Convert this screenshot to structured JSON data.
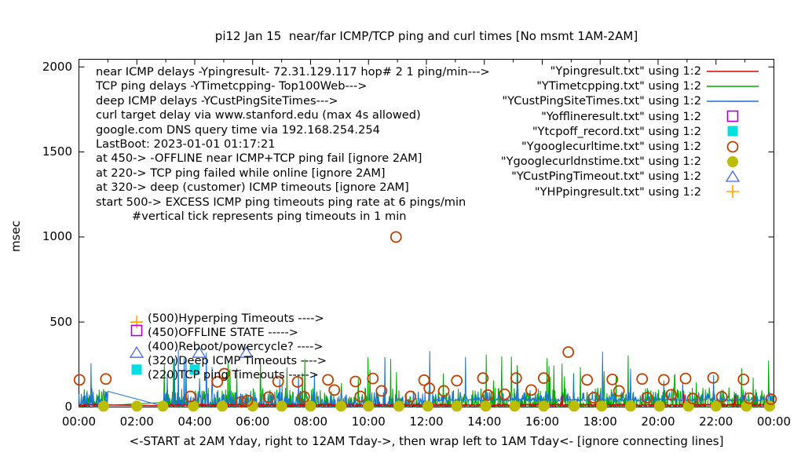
{
  "chart_data": {
    "type": "line",
    "title": "pi12 Jan 15  near/far ICMP/TCP ping and curl times [No msmt 1AM-2AM]",
    "ylabel": "msec",
    "xlabel": "<-START at 2AM Yday, right to 12AM Tday->, then wrap left to 1AM Tday<- [ignore connecting lines]",
    "ylim": [
      0,
      2050
    ],
    "yticks": [
      0,
      500,
      1000,
      1500,
      2000
    ],
    "xticks": [
      "00:00",
      "02:00",
      "04:00",
      "06:00",
      "08:00",
      "10:00",
      "12:00",
      "14:00",
      "16:00",
      "18:00",
      "20:00",
      "22:00",
      "00:00"
    ],
    "x_hours_range": [
      0,
      24
    ],
    "grid": false,
    "legend_position": "top-right-inside",
    "no_measurement_gap_hours": [
      1.0,
      2.9
    ],
    "series": [
      {
        "name": "\"Ypingresult.txt\" using 1:2",
        "file": "Ypingresult.txt",
        "style": "line",
        "color": "#e00000",
        "role": "near ICMP ping delay, ~8-16 msec baseline with rare spikes to 90",
        "noise": {
          "kind": "uniform",
          "base": 7,
          "range": 9,
          "spike_p": 0.004,
          "spike_min": 40,
          "spike_max": 90
        },
        "seed": 101
      },
      {
        "name": "\"YTimetcpping.txt\" using 1:2",
        "file": "YTimetcpping.txt",
        "style": "line",
        "color": "#00a800",
        "role": "TCP ping delay Top100Web, 0-120 msec noise, spikes to ~300",
        "noise": {
          "kind": "power",
          "pow": 3,
          "base": 115,
          "spike_p": 0.025,
          "spike_min": 140,
          "spike_max": 310
        },
        "seed": 202
      },
      {
        "name": "\"YCustPingSiteTimes.txt\" using 1:2",
        "file": "YCustPingSiteTimes.txt",
        "style": "line",
        "color": "#1874d2",
        "role": "deep customer ICMP delay, 0-100 msec noise, ~40 msec floor after 12:00, spikes to ~350",
        "noise": {
          "kind": "power",
          "pow": 3,
          "base": 95,
          "floor_after_hour": 12.2,
          "floor_min": 34,
          "floor_range": 12,
          "spike_p": 0.016,
          "spike_min": 120,
          "spike_max": 350
        },
        "seed": 303
      },
      {
        "name": "\"Yofflineresult.txt\" using 1:2",
        "file": "Yofflineresult.txt",
        "style": "open-square",
        "color": "#b000d8",
        "role": "offline state events at 450",
        "points": []
      },
      {
        "name": "\"Ytcpoff_record.txt\" using 1:2",
        "file": "Ytcpoff_record.txt",
        "style": "filled-square",
        "color": "#00e0e0",
        "role": "TCP ping failed while online at 220",
        "points": [
          [
            4.0,
            220
          ]
        ]
      },
      {
        "name": "\"Ygooglecurltime.txt\" using 1:2",
        "file": "Ygooglecurltime.txt",
        "style": "open-circle",
        "color": "#bf4000",
        "role": "curl target delay via www.stanford.edu",
        "points": [
          [
            0.02,
            160
          ],
          [
            0.93,
            165
          ],
          [
            3.85,
            62
          ],
          [
            4.78,
            148
          ],
          [
            5.02,
            196
          ],
          [
            5.6,
            30
          ],
          [
            5.82,
            38
          ],
          [
            6.55,
            58
          ],
          [
            6.88,
            150
          ],
          [
            7.55,
            148
          ],
          [
            7.78,
            60
          ],
          [
            8.6,
            160
          ],
          [
            8.82,
            100
          ],
          [
            9.55,
            150
          ],
          [
            9.72,
            62
          ],
          [
            10.15,
            168
          ],
          [
            10.45,
            95
          ],
          [
            10.95,
            1000
          ],
          [
            11.45,
            62
          ],
          [
            11.92,
            158
          ],
          [
            12.1,
            110
          ],
          [
            12.6,
            95
          ],
          [
            13.05,
            155
          ],
          [
            13.95,
            170
          ],
          [
            14.12,
            70
          ],
          [
            14.7,
            75
          ],
          [
            15.1,
            170
          ],
          [
            15.62,
            100
          ],
          [
            16.05,
            170
          ],
          [
            16.9,
            323
          ],
          [
            17.55,
            160
          ],
          [
            17.78,
            55
          ],
          [
            18.42,
            162
          ],
          [
            18.65,
            95
          ],
          [
            19.45,
            165
          ],
          [
            19.62,
            55
          ],
          [
            20.2,
            160
          ],
          [
            20.45,
            72
          ],
          [
            20.95,
            168
          ],
          [
            21.2,
            50
          ],
          [
            21.9,
            172
          ],
          [
            22.2,
            60
          ],
          [
            22.95,
            162
          ],
          [
            23.15,
            52
          ],
          [
            23.9,
            46
          ]
        ]
      },
      {
        "name": "\"Ygooglecurldnstime.txt\" using 1:2",
        "file": "Ygooglecurldnstime.txt",
        "style": "filled-circle",
        "color": "#bcbc00",
        "role": "google.com DNS query time via 192.168.254.254, ~5-10 msec hourly",
        "points": [
          [
            0.85,
            5
          ],
          [
            2.0,
            5
          ],
          [
            2.9,
            5
          ],
          [
            3.95,
            5
          ],
          [
            4.95,
            5
          ],
          [
            6.0,
            5
          ],
          [
            7.0,
            5
          ],
          [
            8.0,
            5
          ],
          [
            9.05,
            5
          ],
          [
            10.0,
            5
          ],
          [
            11.05,
            5
          ],
          [
            12.05,
            5
          ],
          [
            13.05,
            5
          ],
          [
            14.05,
            5
          ],
          [
            15.05,
            5
          ],
          [
            16.05,
            5
          ],
          [
            17.1,
            5
          ],
          [
            18.05,
            5
          ],
          [
            19.05,
            5
          ],
          [
            20.05,
            5
          ],
          [
            21.05,
            5
          ],
          [
            22.0,
            5
          ],
          [
            23.05,
            5
          ],
          [
            23.85,
            5
          ]
        ]
      },
      {
        "name": "\"YCustPingTimeout.txt\" using 1:2",
        "file": "YCustPingTimeout.txt",
        "style": "open-triangle",
        "color": "#4169e1",
        "role": "deep (customer) ICMP timeouts at 320",
        "points": [
          [
            4.15,
            320
          ],
          [
            5.78,
            320
          ]
        ]
      },
      {
        "name": "\"YHPpingresult.txt\" using 1:2",
        "file": "YHPpingresult.txt",
        "style": "plus",
        "color": "#ffa500",
        "role": "Hyperping excess ICMP timeouts at 500",
        "points": []
      }
    ]
  },
  "annotations": {
    "lines": [
      "near ICMP delays -Ypingresult- 72.31.129.117 hop# 2 1 ping/min--->",
      "TCP ping delays -YTimetcpping- Top100Web--->",
      "deep ICMP delays -YCustPingSiteTimes--->",
      "curl target delay via www.stanford.edu (max 4s allowed)",
      "google.com DNS query time via 192.168.254.254",
      "LastBoot: 2023-01-01 01:17:21",
      "at 450-> -OFFLINE near ICMP+TCP ping fail [ignore 2AM]",
      "at 220-> TCP ping failed while online [ignore 2AM]",
      "at 320-> deep (customer) ICMP timeouts [ignore 2AM]",
      "start 500-> EXCESS ICMP ping timeouts ping rate at 6 pings/min",
      "#vertical tick represents ping timeouts in 1 min"
    ]
  },
  "inplot_labels": [
    {
      "text": "(500)Hyperping Timeouts ---->",
      "msec": 500,
      "marker": "plus",
      "color": "#ffa500"
    },
    {
      "text": "(450)OFFLINE STATE ----->",
      "msec": 450,
      "marker": "open-square",
      "color": "#b000d8"
    },
    {
      "text": "(400)Reboot/powercycle? ---->",
      "msec": 400,
      "marker": null,
      "color": null
    },
    {
      "text": "(320)Deep ICMP Timeouts ---->",
      "msec": 320,
      "marker": "open-triangle",
      "color": "#4169e1"
    },
    {
      "text": "(220)TCP ping Timeouts ----->",
      "msec": 220,
      "marker": "filled-square",
      "color": "#00e0e0"
    }
  ]
}
